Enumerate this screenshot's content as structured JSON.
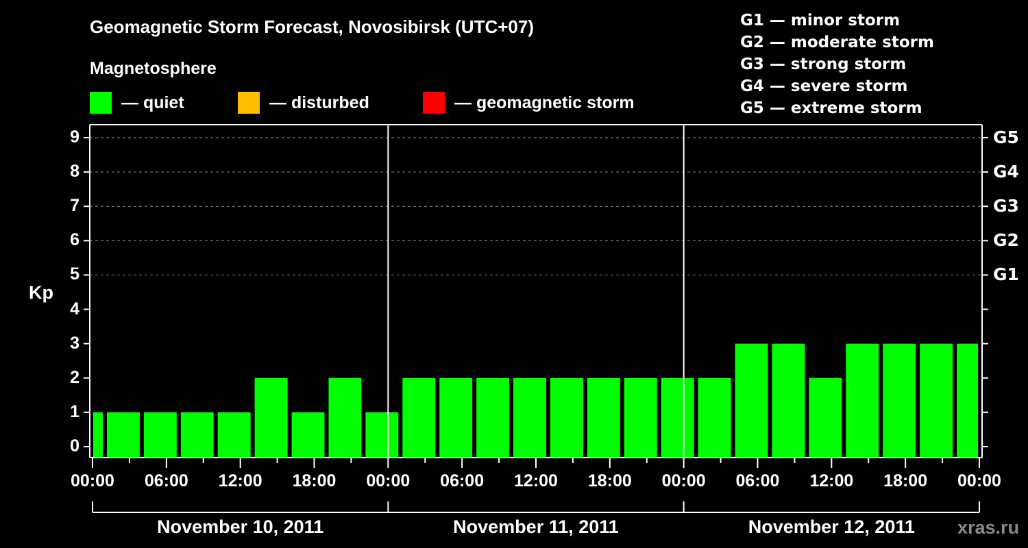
{
  "title": "Geomagnetic Storm Forecast, Novosibirsk (UTC+07)",
  "subtitle": "Magnetosphere",
  "legend": [
    {
      "label": "— quiet",
      "color": "#00ff00"
    },
    {
      "label": "— disturbed",
      "color": "#ffbf00"
    },
    {
      "label": "— geomagnetic storm",
      "color": "#ff0000"
    }
  ],
  "g_legend": [
    "G1 — minor storm",
    "G2 — moderate storm",
    "G3 — strong storm",
    "G4 — severe storm",
    "G5 — extreme storm"
  ],
  "y_axis_label": "Kp",
  "y_ticks": [
    "0",
    "1",
    "2",
    "3",
    "4",
    "5",
    "6",
    "7",
    "8",
    "9"
  ],
  "g_ticks": [
    "G1",
    "G2",
    "G3",
    "G4",
    "G5"
  ],
  "x_ticks": [
    "00:00",
    "06:00",
    "12:00",
    "18:00",
    "00:00",
    "06:00",
    "12:00",
    "18:00",
    "00:00",
    "06:00",
    "12:00",
    "18:00",
    "00:00"
  ],
  "dates": [
    "November 10, 2011",
    "November 11, 2011",
    "November 12, 2011"
  ],
  "watermark": "xras.ru",
  "chart_data": {
    "type": "bar",
    "title": "Geomagnetic Storm Forecast, Novosibirsk (UTC+07)",
    "xlabel": "",
    "ylabel": "Kp",
    "ylim": [
      0,
      9
    ],
    "x_range": [
      "2011-11-10 00:00",
      "2011-11-13 00:00"
    ],
    "bar_interval_hours": 3,
    "first_bar_start_hour": -2,
    "categories": [
      "Nov 10 ~00:00",
      "Nov 10 01:00",
      "Nov 10 04:00",
      "Nov 10 07:00",
      "Nov 10 10:00",
      "Nov 10 13:00",
      "Nov 10 16:00",
      "Nov 10 19:00",
      "Nov 10 22:00",
      "Nov 11 01:00",
      "Nov 11 04:00",
      "Nov 11 07:00",
      "Nov 11 10:00",
      "Nov 11 13:00",
      "Nov 11 16:00",
      "Nov 11 19:00",
      "Nov 11 22:00",
      "Nov 12 01:00",
      "Nov 12 04:00",
      "Nov 12 07:00",
      "Nov 12 10:00",
      "Nov 12 13:00",
      "Nov 12 16:00",
      "Nov 12 19:00",
      "Nov 12 22:00"
    ],
    "values": [
      1,
      1,
      1,
      1,
      1,
      2,
      1,
      2,
      1,
      2,
      2,
      2,
      2,
      2,
      2,
      2,
      2,
      2,
      3,
      3,
      2,
      3,
      3,
      3,
      3
    ],
    "bar_color": "#00ff00",
    "grid": {
      "y_dashed_lines": [
        5,
        6,
        7,
        8,
        9
      ]
    },
    "secondary_y": {
      "labels": {
        "5": "G1",
        "6": "G2",
        "7": "G3",
        "8": "G4",
        "9": "G5"
      }
    },
    "legend": [
      "quiet",
      "disturbed",
      "geomagnetic storm"
    ],
    "legend_position": "top"
  }
}
